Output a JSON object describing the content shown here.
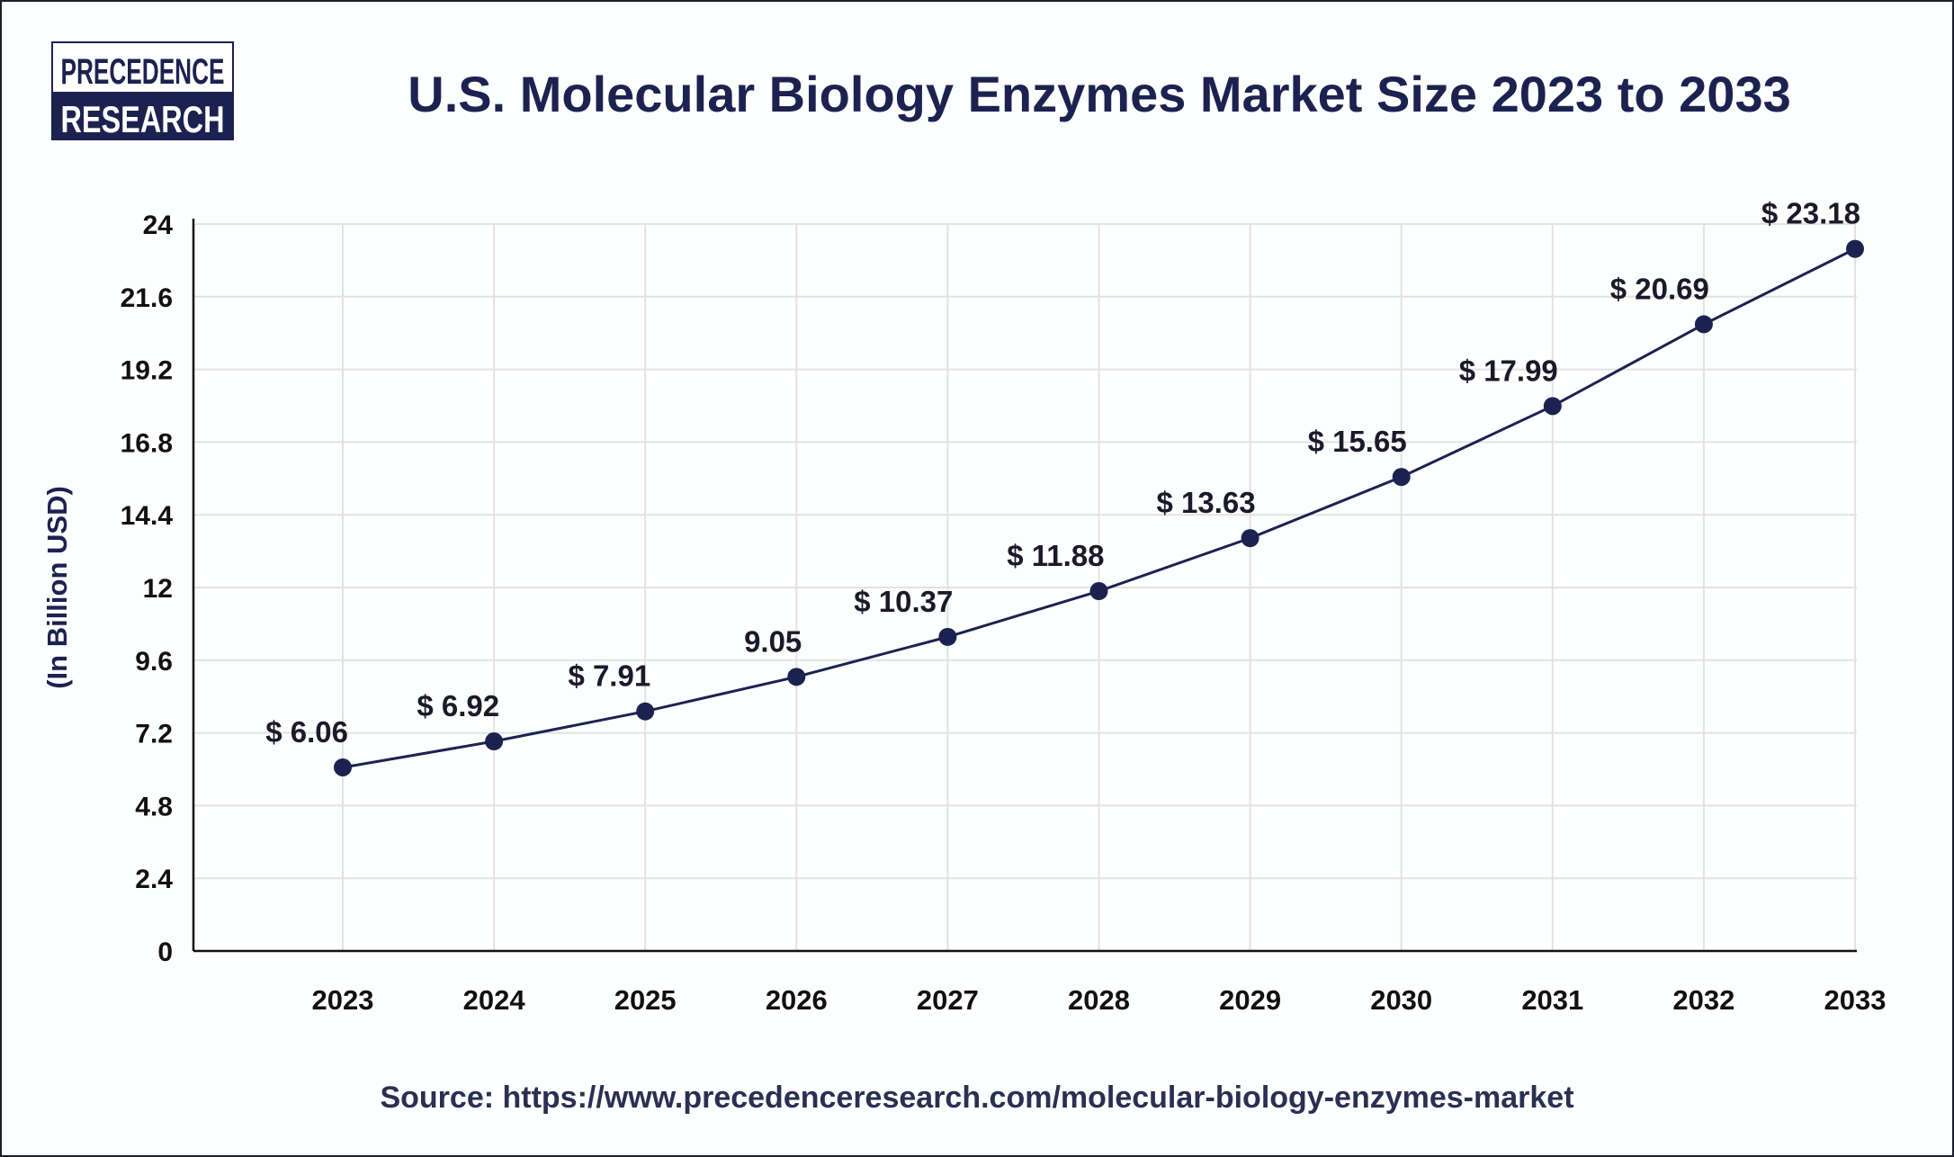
{
  "logo": {
    "line1": "PRECEDENCE",
    "line2": "RESEARCH"
  },
  "colors": {
    "navy": "#1c2250",
    "line": "#1c2250",
    "grid": "#e2e2e2",
    "text": "#111111"
  },
  "chart_data": {
    "type": "line",
    "title": "U.S. Molecular Biology Enzymes Market Size 2023 to 2033",
    "ylabel": "(In Billion USD)",
    "xlabel": "",
    "ylim": [
      0,
      24
    ],
    "yticks": [
      "0",
      "2.4",
      "4.8",
      "7.2",
      "9.6",
      "12",
      "14.4",
      "16.8",
      "19.2",
      "21.6",
      "24"
    ],
    "grid": true,
    "categories": [
      "2023",
      "2024",
      "2025",
      "2026",
      "2027",
      "2028",
      "2029",
      "2030",
      "2031",
      "2032",
      "2033"
    ],
    "values": [
      6.06,
      6.92,
      7.91,
      9.05,
      10.37,
      11.88,
      13.63,
      15.65,
      17.99,
      20.69,
      23.18
    ],
    "data_labels": [
      "$ 6.06",
      "$ 6.92",
      "$ 7.91",
      "9.05",
      "$ 10.37",
      "$ 11.88",
      "$ 13.63",
      "$ 15.65",
      "$ 17.99",
      "$ 20.69",
      "$ 23.18"
    ]
  },
  "source": "Source: https://www.precedenceresearch.com/molecular-biology-enzymes-market"
}
